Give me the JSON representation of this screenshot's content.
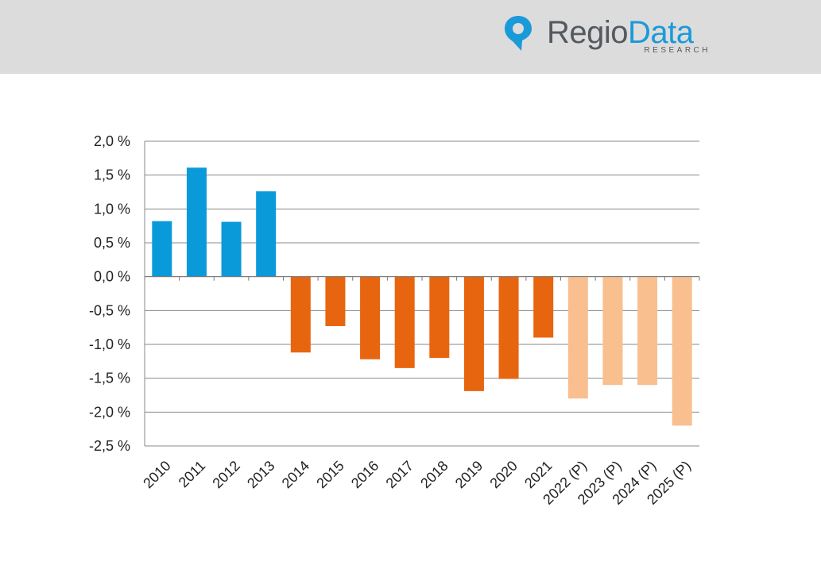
{
  "header": {
    "logo_regio": "Regio",
    "logo_data": "Data",
    "logo_sub": "RESEARCH"
  },
  "colors": {
    "header_bg": "#dcdcdc",
    "positive": "#0a9ad9",
    "negative": "#e8650f",
    "projection": "#f9bf8f",
    "grid": "#888888"
  },
  "chart_data": {
    "type": "bar",
    "categories": [
      "2010",
      "2011",
      "2012",
      "2013",
      "2014",
      "2015",
      "2016",
      "2017",
      "2018",
      "2019",
      "2020",
      "2021",
      "2022 (P)",
      "2023 (P)",
      "2024 (P)",
      "2025 (P)"
    ],
    "values": [
      0.82,
      1.61,
      0.81,
      1.26,
      -1.12,
      -0.73,
      -1.22,
      -1.35,
      -1.2,
      -1.69,
      -1.51,
      -0.9,
      -1.8,
      -1.6,
      -1.6,
      -2.2
    ],
    "bar_colors": [
      "#0a9ad9",
      "#0a9ad9",
      "#0a9ad9",
      "#0a9ad9",
      "#e8650f",
      "#e8650f",
      "#e8650f",
      "#e8650f",
      "#e8650f",
      "#e8650f",
      "#e8650f",
      "#e8650f",
      "#f9bf8f",
      "#f9bf8f",
      "#f9bf8f",
      "#f9bf8f"
    ],
    "ylim": [
      -2.5,
      2.0
    ],
    "yticks": [
      2.0,
      1.5,
      1.0,
      0.5,
      0.0,
      -0.5,
      -1.0,
      -1.5,
      -2.0,
      -2.5
    ],
    "ytick_labels": [
      "2,0 %",
      "1,5 %",
      "1,0 %",
      "0,5 %",
      "0,0 %",
      "-0,5 %",
      "-1,0 %",
      "-1,5 %",
      "-2,0 %",
      "-2,5 %"
    ],
    "grid": true,
    "title": "",
    "xlabel": "",
    "ylabel": ""
  }
}
